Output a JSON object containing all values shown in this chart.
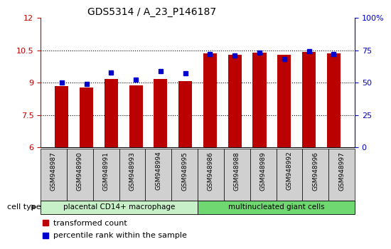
{
  "title": "GDS5314 / A_23_P146187",
  "samples": [
    "GSM948987",
    "GSM948990",
    "GSM948991",
    "GSM948993",
    "GSM948994",
    "GSM948995",
    "GSM948986",
    "GSM948988",
    "GSM948989",
    "GSM948992",
    "GSM948996",
    "GSM948997"
  ],
  "red_values": [
    8.85,
    8.78,
    9.17,
    8.88,
    9.17,
    9.08,
    10.35,
    10.3,
    10.38,
    10.3,
    10.42,
    10.35
  ],
  "blue_values": [
    50,
    49,
    58,
    52,
    59,
    57,
    72,
    71,
    73,
    68,
    74,
    72
  ],
  "ylim_left": [
    6,
    12
  ],
  "ylim_right": [
    0,
    100
  ],
  "yticks_left": [
    6,
    7.5,
    9,
    10.5,
    12
  ],
  "yticks_right": [
    0,
    25,
    50,
    75,
    100
  ],
  "ytick_labels_left": [
    "6",
    "7.5",
    "9",
    "10.5",
    "12"
  ],
  "ytick_labels_right": [
    "0",
    "25",
    "50",
    "75",
    "100%"
  ],
  "groups": [
    {
      "label": "placental CD14+ macrophage",
      "start": 0,
      "end": 6,
      "color": "#c8f0c8"
    },
    {
      "label": "multinucleated giant cells",
      "start": 6,
      "end": 12,
      "color": "#70d870"
    }
  ],
  "cell_type_label": "cell type",
  "legend_red": "transformed count",
  "legend_blue": "percentile rank within the sample",
  "bar_color": "#bb0000",
  "dot_color": "#0000cc",
  "bar_bottom": 6,
  "grid_color": "#000000",
  "sample_box_color": "#d0d0d0",
  "title_fontsize": 10,
  "tick_fontsize": 8,
  "label_fontsize": 8,
  "bar_width": 0.55
}
